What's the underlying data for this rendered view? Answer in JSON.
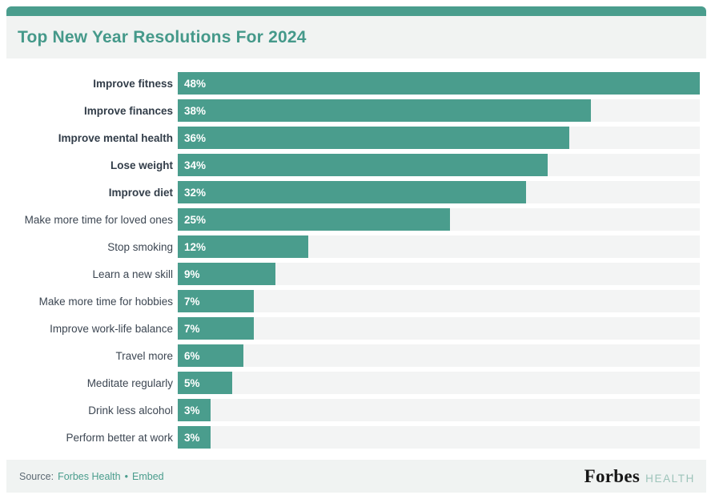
{
  "colors": {
    "accent_teal": "#4a9d8d",
    "title_teal": "#45998a",
    "header_bg": "#f1f3f2",
    "footer_bg": "#f0f3f2",
    "track_gray": "#f3f4f4",
    "bar_value_text": "#ffffff",
    "label_text": "#3c4652",
    "source_text": "#5d6a74",
    "logo_black": "#161616",
    "logo_health_teal": "#9dc4ba"
  },
  "header": {
    "title": "Top New Year Resolutions For 2024"
  },
  "chart_data": {
    "type": "bar",
    "orientation": "horizontal",
    "title": "Top New Year Resolutions For 2024",
    "categories": [
      "Improve fitness",
      "Improve finances",
      "Improve mental health",
      "Lose weight",
      "Improve diet",
      "Make more time for loved ones",
      "Stop smoking",
      "Learn a new skill",
      "Make more time for hobbies",
      "Improve work-life balance",
      "Travel more",
      "Meditate regularly",
      "Drink less alcohol",
      "Perform better at work"
    ],
    "values": [
      48,
      38,
      36,
      34,
      32,
      25,
      12,
      9,
      7,
      7,
      6,
      5,
      3,
      3
    ],
    "value_suffix": "%",
    "xlim": [
      0,
      48
    ],
    "bold_label_count": 5,
    "legend": "none",
    "grid": "off",
    "bar_color": "#4a9d8d",
    "track_color": "#f3f4f4",
    "value_label_position": "inside-start"
  },
  "footer": {
    "source_label": "Source:",
    "source_link": "Forbes Health",
    "separator": "•",
    "embed_link": "Embed",
    "logo_primary": "Forbes",
    "logo_secondary": "HEALTH"
  }
}
